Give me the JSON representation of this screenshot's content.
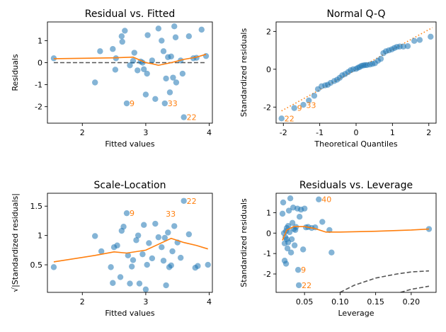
{
  "colors": {
    "points": "#1f77b4",
    "smooth": "#ff7f0e",
    "ref": "#555555",
    "annotation": "#ff7f0e"
  },
  "chart_data": [
    {
      "id": "rvf",
      "type": "scatter",
      "title": "Residual vs. Fitted",
      "xlabel": "Fitted values",
      "ylabel": "Residuals",
      "xlim": [
        1.45,
        4.05
      ],
      "ylim": [
        -2.75,
        1.85
      ],
      "xticks": [
        2,
        3,
        4
      ],
      "yticks": [
        -2,
        -1,
        0,
        1
      ],
      "grid": false,
      "points": [
        [
          1.55,
          0.2
        ],
        [
          2.2,
          -0.9
        ],
        [
          2.28,
          0.52
        ],
        [
          2.48,
          0.62
        ],
        [
          2.52,
          -0.32
        ],
        [
          2.53,
          0.2
        ],
        [
          2.62,
          1.2
        ],
        [
          2.63,
          0.95
        ],
        [
          2.67,
          1.45
        ],
        [
          2.7,
          -1.85
        ],
        [
          2.75,
          -0.12
        ],
        [
          2.8,
          0.08
        ],
        [
          2.82,
          0.45
        ],
        [
          2.87,
          -0.35
        ],
        [
          2.92,
          0.05
        ],
        [
          2.95,
          0.0
        ],
        [
          2.97,
          -0.3
        ],
        [
          3.0,
          -1.45
        ],
        [
          3.02,
          -0.5
        ],
        [
          3.03,
          1.25
        ],
        [
          3.1,
          0.1
        ],
        [
          3.15,
          -1.65
        ],
        [
          3.2,
          1.55
        ],
        [
          3.25,
          1.0
        ],
        [
          3.28,
          0.52
        ],
        [
          3.3,
          -1.85
        ],
        [
          3.32,
          -0.72
        ],
        [
          3.35,
          0.25
        ],
        [
          3.38,
          -1.35
        ],
        [
          3.4,
          0.28
        ],
        [
          3.43,
          -0.68
        ],
        [
          3.45,
          1.65
        ],
        [
          3.47,
          1.15
        ],
        [
          3.48,
          -0.9
        ],
        [
          3.55,
          0.1
        ],
        [
          3.58,
          -0.5
        ],
        [
          3.6,
          -2.48
        ],
        [
          3.68,
          1.2
        ],
        [
          3.75,
          0.2
        ],
        [
          3.8,
          0.22
        ],
        [
          3.88,
          1.5
        ],
        [
          3.95,
          0.3
        ]
      ],
      "smooth": [
        [
          1.55,
          0.18
        ],
        [
          2.5,
          0.22
        ],
        [
          2.8,
          0.25
        ],
        [
          3.0,
          0.0
        ],
        [
          3.1,
          -0.05
        ],
        [
          3.2,
          -0.12
        ],
        [
          3.4,
          0.0
        ],
        [
          3.6,
          0.15
        ],
        [
          3.8,
          0.25
        ],
        [
          3.95,
          0.38
        ]
      ],
      "refline": {
        "type": "hline",
        "y": 0,
        "xrange": [
          1.55,
          3.95
        ]
      },
      "labels": [
        {
          "text": "9",
          "x": 2.7,
          "y": -1.85
        },
        {
          "text": "33",
          "x": 3.3,
          "y": -1.85
        },
        {
          "text": "22",
          "x": 3.6,
          "y": -2.48
        }
      ]
    },
    {
      "id": "qq",
      "type": "scatter",
      "title": "Normal Q-Q",
      "xlabel": "Theoretical Quantiles",
      "ylabel": "Standardized residuals",
      "xlim": [
        -2.2,
        2.2
      ],
      "ylim": [
        -2.85,
        2.5
      ],
      "xticks": [
        -2,
        -1,
        0,
        1,
        2
      ],
      "yticks": [
        -2,
        0,
        2
      ],
      "grid": false,
      "points": [
        [
          -2.05,
          -2.6
        ],
        [
          -1.7,
          -2.05
        ],
        [
          -1.45,
          -1.88
        ],
        [
          -1.3,
          -1.65
        ],
        [
          -1.15,
          -1.4
        ],
        [
          -1.05,
          -1.05
        ],
        [
          -0.95,
          -0.9
        ],
        [
          -0.85,
          -0.85
        ],
        [
          -0.78,
          -0.82
        ],
        [
          -0.7,
          -0.72
        ],
        [
          -0.6,
          -0.62
        ],
        [
          -0.52,
          -0.55
        ],
        [
          -0.45,
          -0.45
        ],
        [
          -0.38,
          -0.32
        ],
        [
          -0.3,
          -0.25
        ],
        [
          -0.22,
          -0.15
        ],
        [
          -0.15,
          -0.05
        ],
        [
          -0.08,
          0.0
        ],
        [
          0.0,
          0.02
        ],
        [
          0.05,
          0.08
        ],
        [
          0.1,
          0.12
        ],
        [
          0.15,
          0.18
        ],
        [
          0.2,
          0.2
        ],
        [
          0.25,
          0.22
        ],
        [
          0.3,
          0.22
        ],
        [
          0.38,
          0.25
        ],
        [
          0.45,
          0.28
        ],
        [
          0.52,
          0.32
        ],
        [
          0.6,
          0.45
        ],
        [
          0.68,
          0.55
        ],
        [
          0.75,
          0.85
        ],
        [
          0.82,
          0.95
        ],
        [
          0.9,
          1.0
        ],
        [
          0.98,
          1.05
        ],
        [
          1.05,
          1.12
        ],
        [
          1.12,
          1.18
        ],
        [
          1.2,
          1.2
        ],
        [
          1.3,
          1.2
        ],
        [
          1.42,
          1.22
        ],
        [
          1.6,
          1.5
        ],
        [
          1.75,
          1.55
        ],
        [
          2.05,
          1.72
        ]
      ],
      "refline": {
        "type": "line",
        "points": [
          [
            -2.05,
            -2.2
          ],
          [
            2.1,
            2.2
          ]
        ]
      },
      "labels": [
        {
          "text": "22",
          "x": -2.05,
          "y": -2.6
        },
        {
          "text": "9",
          "x": -1.7,
          "y": -2.05
        },
        {
          "text": "33",
          "x": -1.45,
          "y": -1.9
        }
      ]
    },
    {
      "id": "sl",
      "type": "scatter",
      "title": "Scale-Location",
      "xlabel": "Fitted values",
      "ylabel": "√|Standardized residuals|",
      "xlim": [
        1.45,
        4.05
      ],
      "ylim": [
        0.03,
        1.72
      ],
      "xticks": [
        2,
        3,
        4
      ],
      "yticks": [
        0.5,
        1.0,
        1.5
      ],
      "grid": false,
      "points": [
        [
          1.55,
          0.46
        ],
        [
          2.2,
          0.99
        ],
        [
          2.3,
          0.73
        ],
        [
          2.45,
          0.46
        ],
        [
          2.48,
          0.19
        ],
        [
          2.5,
          0.8
        ],
        [
          2.55,
          0.83
        ],
        [
          2.6,
          0.29
        ],
        [
          2.62,
          1.08
        ],
        [
          2.65,
          1.15
        ],
        [
          2.7,
          1.38
        ],
        [
          2.72,
          0.66
        ],
        [
          2.75,
          0.18
        ],
        [
          2.78,
          0.47
        ],
        [
          2.8,
          0.58
        ],
        [
          2.85,
          0.92
        ],
        [
          2.88,
          1.0
        ],
        [
          2.9,
          0.18
        ],
        [
          2.95,
          0.68
        ],
        [
          2.97,
          1.18
        ],
        [
          3.0,
          0.08
        ],
        [
          3.02,
          0.5
        ],
        [
          3.05,
          0.87
        ],
        [
          3.1,
          0.61
        ],
        [
          3.15,
          1.2
        ],
        [
          3.2,
          0.97
        ],
        [
          3.25,
          0.8
        ],
        [
          3.28,
          0.57
        ],
        [
          3.3,
          0.96
        ],
        [
          3.32,
          0.15
        ],
        [
          3.35,
          1.05
        ],
        [
          3.37,
          0.46
        ],
        [
          3.4,
          0.49
        ],
        [
          3.42,
          0.73
        ],
        [
          3.45,
          1.16
        ],
        [
          3.5,
          0.88
        ],
        [
          3.55,
          0.62
        ],
        [
          3.6,
          1.59
        ],
        [
          3.68,
          1.02
        ],
        [
          3.78,
          0.45
        ],
        [
          3.82,
          0.48
        ],
        [
          3.98,
          0.5
        ]
      ],
      "smooth": [
        [
          1.55,
          0.55
        ],
        [
          2.2,
          0.66
        ],
        [
          2.5,
          0.72
        ],
        [
          2.7,
          0.7
        ],
        [
          3.0,
          0.75
        ],
        [
          3.2,
          0.85
        ],
        [
          3.4,
          0.95
        ],
        [
          3.6,
          0.88
        ],
        [
          3.8,
          0.83
        ],
        [
          3.98,
          0.77
        ]
      ],
      "labels": [
        {
          "text": "9",
          "x": 2.7,
          "y": 1.38
        },
        {
          "text": "33",
          "x": 3.27,
          "y": 1.37
        },
        {
          "text": "22",
          "x": 3.6,
          "y": 1.59
        }
      ]
    },
    {
      "id": "rvl",
      "type": "scatter",
      "title": "Residuals vs. Leverage",
      "xlabel": "Leverage",
      "ylabel": "Standardized residuals",
      "xlim": [
        0.01,
        0.235
      ],
      "ylim": [
        -2.9,
        1.95
      ],
      "xticks": [
        0.05,
        0.1,
        0.15,
        0.2
      ],
      "xticklabels": [
        "0.05",
        "0.10",
        "0.15",
        "0.20"
      ],
      "yticks": [
        -2,
        -1,
        0,
        1
      ],
      "grid": false,
      "points": [
        [
          0.019,
          0.95
        ],
        [
          0.02,
          1.5
        ],
        [
          0.021,
          0.0
        ],
        [
          0.022,
          -0.5
        ],
        [
          0.022,
          -1.35
        ],
        [
          0.023,
          -0.2
        ],
        [
          0.024,
          0.1
        ],
        [
          0.024,
          -1.5
        ],
        [
          0.025,
          0.25
        ],
        [
          0.025,
          -0.3
        ],
        [
          0.026,
          -0.75
        ],
        [
          0.027,
          0.35
        ],
        [
          0.027,
          -0.45
        ],
        [
          0.028,
          1.1
        ],
        [
          0.029,
          0.05
        ],
        [
          0.03,
          1.7
        ],
        [
          0.031,
          -0.95
        ],
        [
          0.032,
          -0.3
        ],
        [
          0.033,
          0.5
        ],
        [
          0.034,
          1.25
        ],
        [
          0.035,
          0.2
        ],
        [
          0.036,
          -0.6
        ],
        [
          0.037,
          0.15
        ],
        [
          0.038,
          0.3
        ],
        [
          0.04,
          1.2
        ],
        [
          0.041,
          -1.8
        ],
        [
          0.042,
          -2.55
        ],
        [
          0.043,
          0.8
        ],
        [
          0.045,
          1.15
        ],
        [
          0.048,
          -0.8
        ],
        [
          0.05,
          1.2
        ],
        [
          0.052,
          0.28
        ],
        [
          0.055,
          0.3
        ],
        [
          0.06,
          0.25
        ],
        [
          0.065,
          0.28
        ],
        [
          0.07,
          1.65
        ],
        [
          0.075,
          0.55
        ],
        [
          0.085,
          0.15
        ],
        [
          0.088,
          -0.95
        ],
        [
          0.225,
          0.2
        ]
      ],
      "smooth": [
        [
          0.019,
          -0.35
        ],
        [
          0.025,
          0.15
        ],
        [
          0.035,
          0.32
        ],
        [
          0.05,
          0.32
        ],
        [
          0.065,
          0.22
        ],
        [
          0.08,
          0.05
        ],
        [
          0.1,
          0.05
        ],
        [
          0.15,
          0.09
        ],
        [
          0.2,
          0.15
        ],
        [
          0.225,
          0.2
        ]
      ],
      "cook": [
        [
          [
            0.1,
            -2.9
          ],
          [
            0.12,
            -2.55
          ],
          [
            0.15,
            -2.2
          ],
          [
            0.18,
            -2.0
          ],
          [
            0.2,
            -1.9
          ],
          [
            0.225,
            -1.85
          ]
        ],
        [
          [
            0.185,
            -2.9
          ],
          [
            0.2,
            -2.75
          ],
          [
            0.225,
            -2.6
          ]
        ]
      ],
      "labels": [
        {
          "text": "40",
          "x": 0.07,
          "y": 1.65
        },
        {
          "text": "9",
          "x": 0.041,
          "y": -1.8
        },
        {
          "text": "22",
          "x": 0.042,
          "y": -2.55
        }
      ]
    }
  ]
}
